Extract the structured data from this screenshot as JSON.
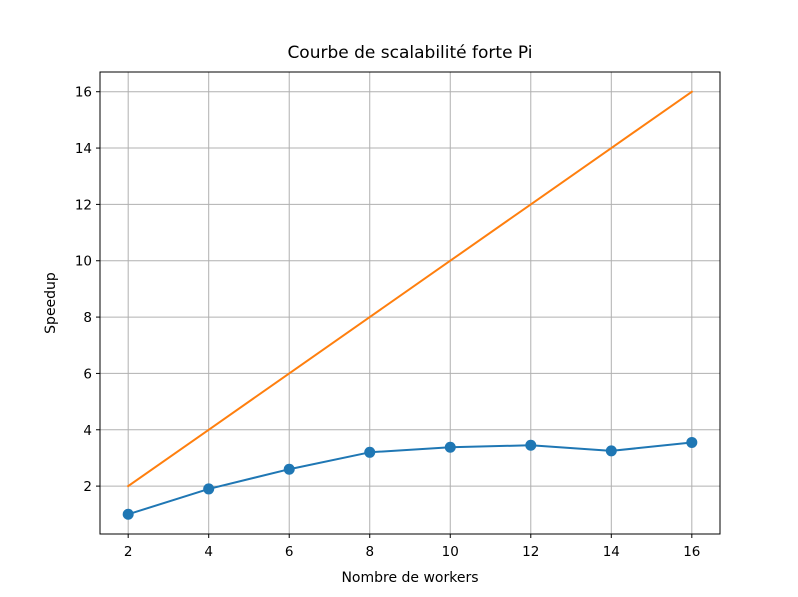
{
  "chart_data": {
    "type": "line",
    "title": "Courbe de scalabilité forte Pi",
    "xlabel": "Nombre de workers",
    "ylabel": "Speedup",
    "x": [
      2,
      4,
      6,
      8,
      10,
      12,
      14,
      16
    ],
    "xticks": [
      "2",
      "4",
      "6",
      "8",
      "10",
      "12",
      "14",
      "16"
    ],
    "yticks": [
      "2",
      "4",
      "6",
      "8",
      "10",
      "12",
      "14",
      "16"
    ],
    "xlim": [
      1.3,
      16.7
    ],
    "ylim": [
      0.3,
      16.7
    ],
    "grid": true,
    "series": [
      {
        "values": [
          1.0,
          1.9,
          2.6,
          3.2,
          3.38,
          3.45,
          3.25,
          3.55
        ],
        "color": "#1f77b4",
        "marker": "circle"
      },
      {
        "values": [
          2,
          4,
          6,
          8,
          10,
          12,
          14,
          16
        ],
        "color": "#ff7f0e",
        "marker": "none"
      }
    ]
  }
}
